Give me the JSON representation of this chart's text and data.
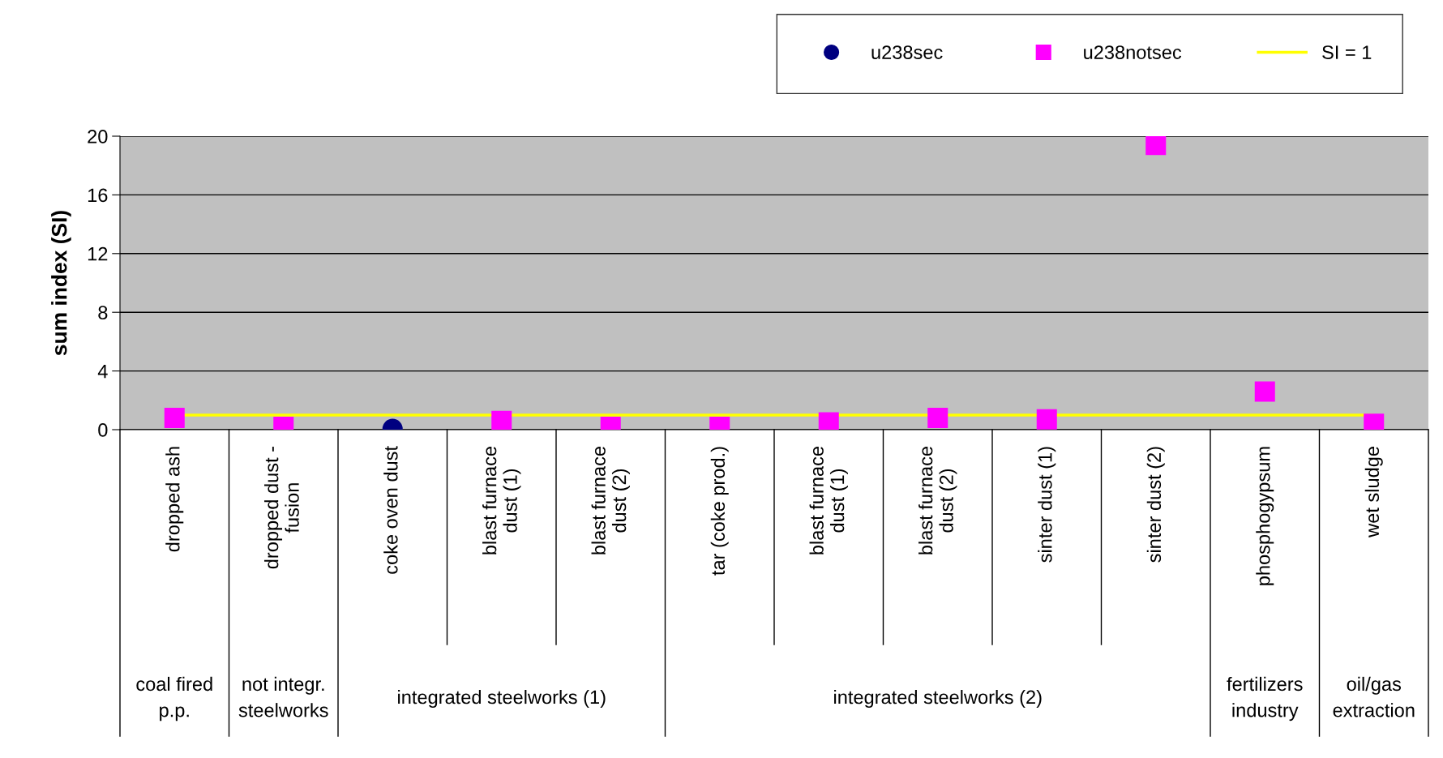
{
  "chart_data": {
    "type": "scatter",
    "ylabel": "sum index (SI)",
    "categories": [
      "dropped ash",
      "dropped dust -\nfusion",
      "coke oven dust",
      "blast furnace\ndust (1)",
      "blast furnace\ndust (2)",
      "tar (coke prod.)",
      "blast furnace\ndust (1)",
      "blast furnace\ndust (2)",
      "sinter dust (1)",
      "sinter dust (2)",
      "phosphogypsum",
      "wet sludge"
    ],
    "series": [
      {
        "name": "u238sec",
        "color": "#000080",
        "marker": "circle",
        "values": [
          null,
          null,
          0.05,
          null,
          null,
          null,
          null,
          null,
          null,
          null,
          null,
          null
        ]
      },
      {
        "name": "u238notsec",
        "color": "#ff00ff",
        "marker": "square",
        "values": [
          0.8,
          0.2,
          null,
          0.6,
          0.2,
          0.2,
          0.5,
          0.8,
          0.7,
          19.4,
          2.6,
          0.4
        ]
      }
    ],
    "ref_lines": [
      {
        "axis": "y",
        "value": 1,
        "label": "SI = 1",
        "color": "#ffff00"
      }
    ],
    "annotations": [
      "coal fired\np.p.",
      "not integr.\nsteelworks",
      "integrated steelworks (1)",
      "integrated steelworks (2)",
      "fertilizers\nindustry",
      "oil/gas\nextraction"
    ],
    "ylim": [
      0,
      20
    ],
    "yticks": [
      0,
      4,
      8,
      12,
      16,
      20
    ],
    "grid": "y",
    "legend": "top right"
  }
}
